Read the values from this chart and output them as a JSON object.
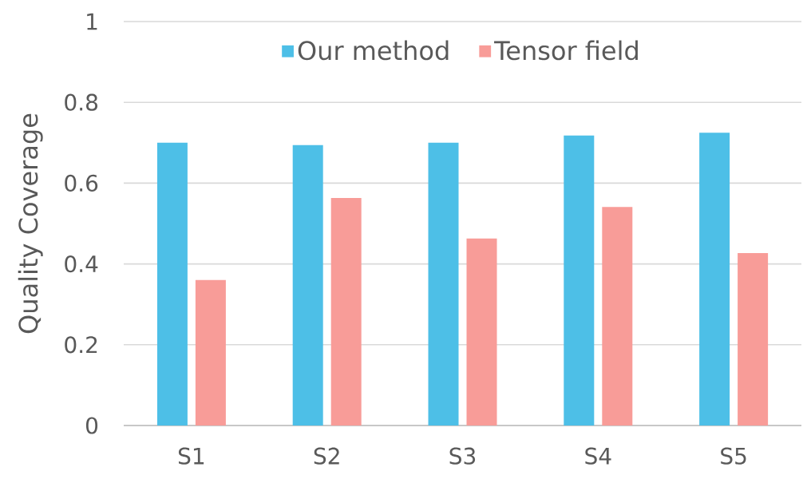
{
  "chart_data": {
    "type": "bar",
    "ylabel": "Quality Coverage",
    "categories": [
      "S1",
      "S2",
      "S3",
      "S4",
      "S5"
    ],
    "series": [
      {
        "name": "Our method",
        "color": "#4dbfe7",
        "values": [
          0.7,
          0.694,
          0.7,
          0.718,
          0.725
        ]
      },
      {
        "name": "Tensor field",
        "color": "#f89c98",
        "values": [
          0.36,
          0.563,
          0.463,
          0.541,
          0.427
        ]
      }
    ],
    "ylim": [
      0,
      1
    ],
    "yticks": [
      0,
      0.2,
      0.4,
      0.6,
      0.8,
      1
    ],
    "grid": "y",
    "legend": "top"
  }
}
